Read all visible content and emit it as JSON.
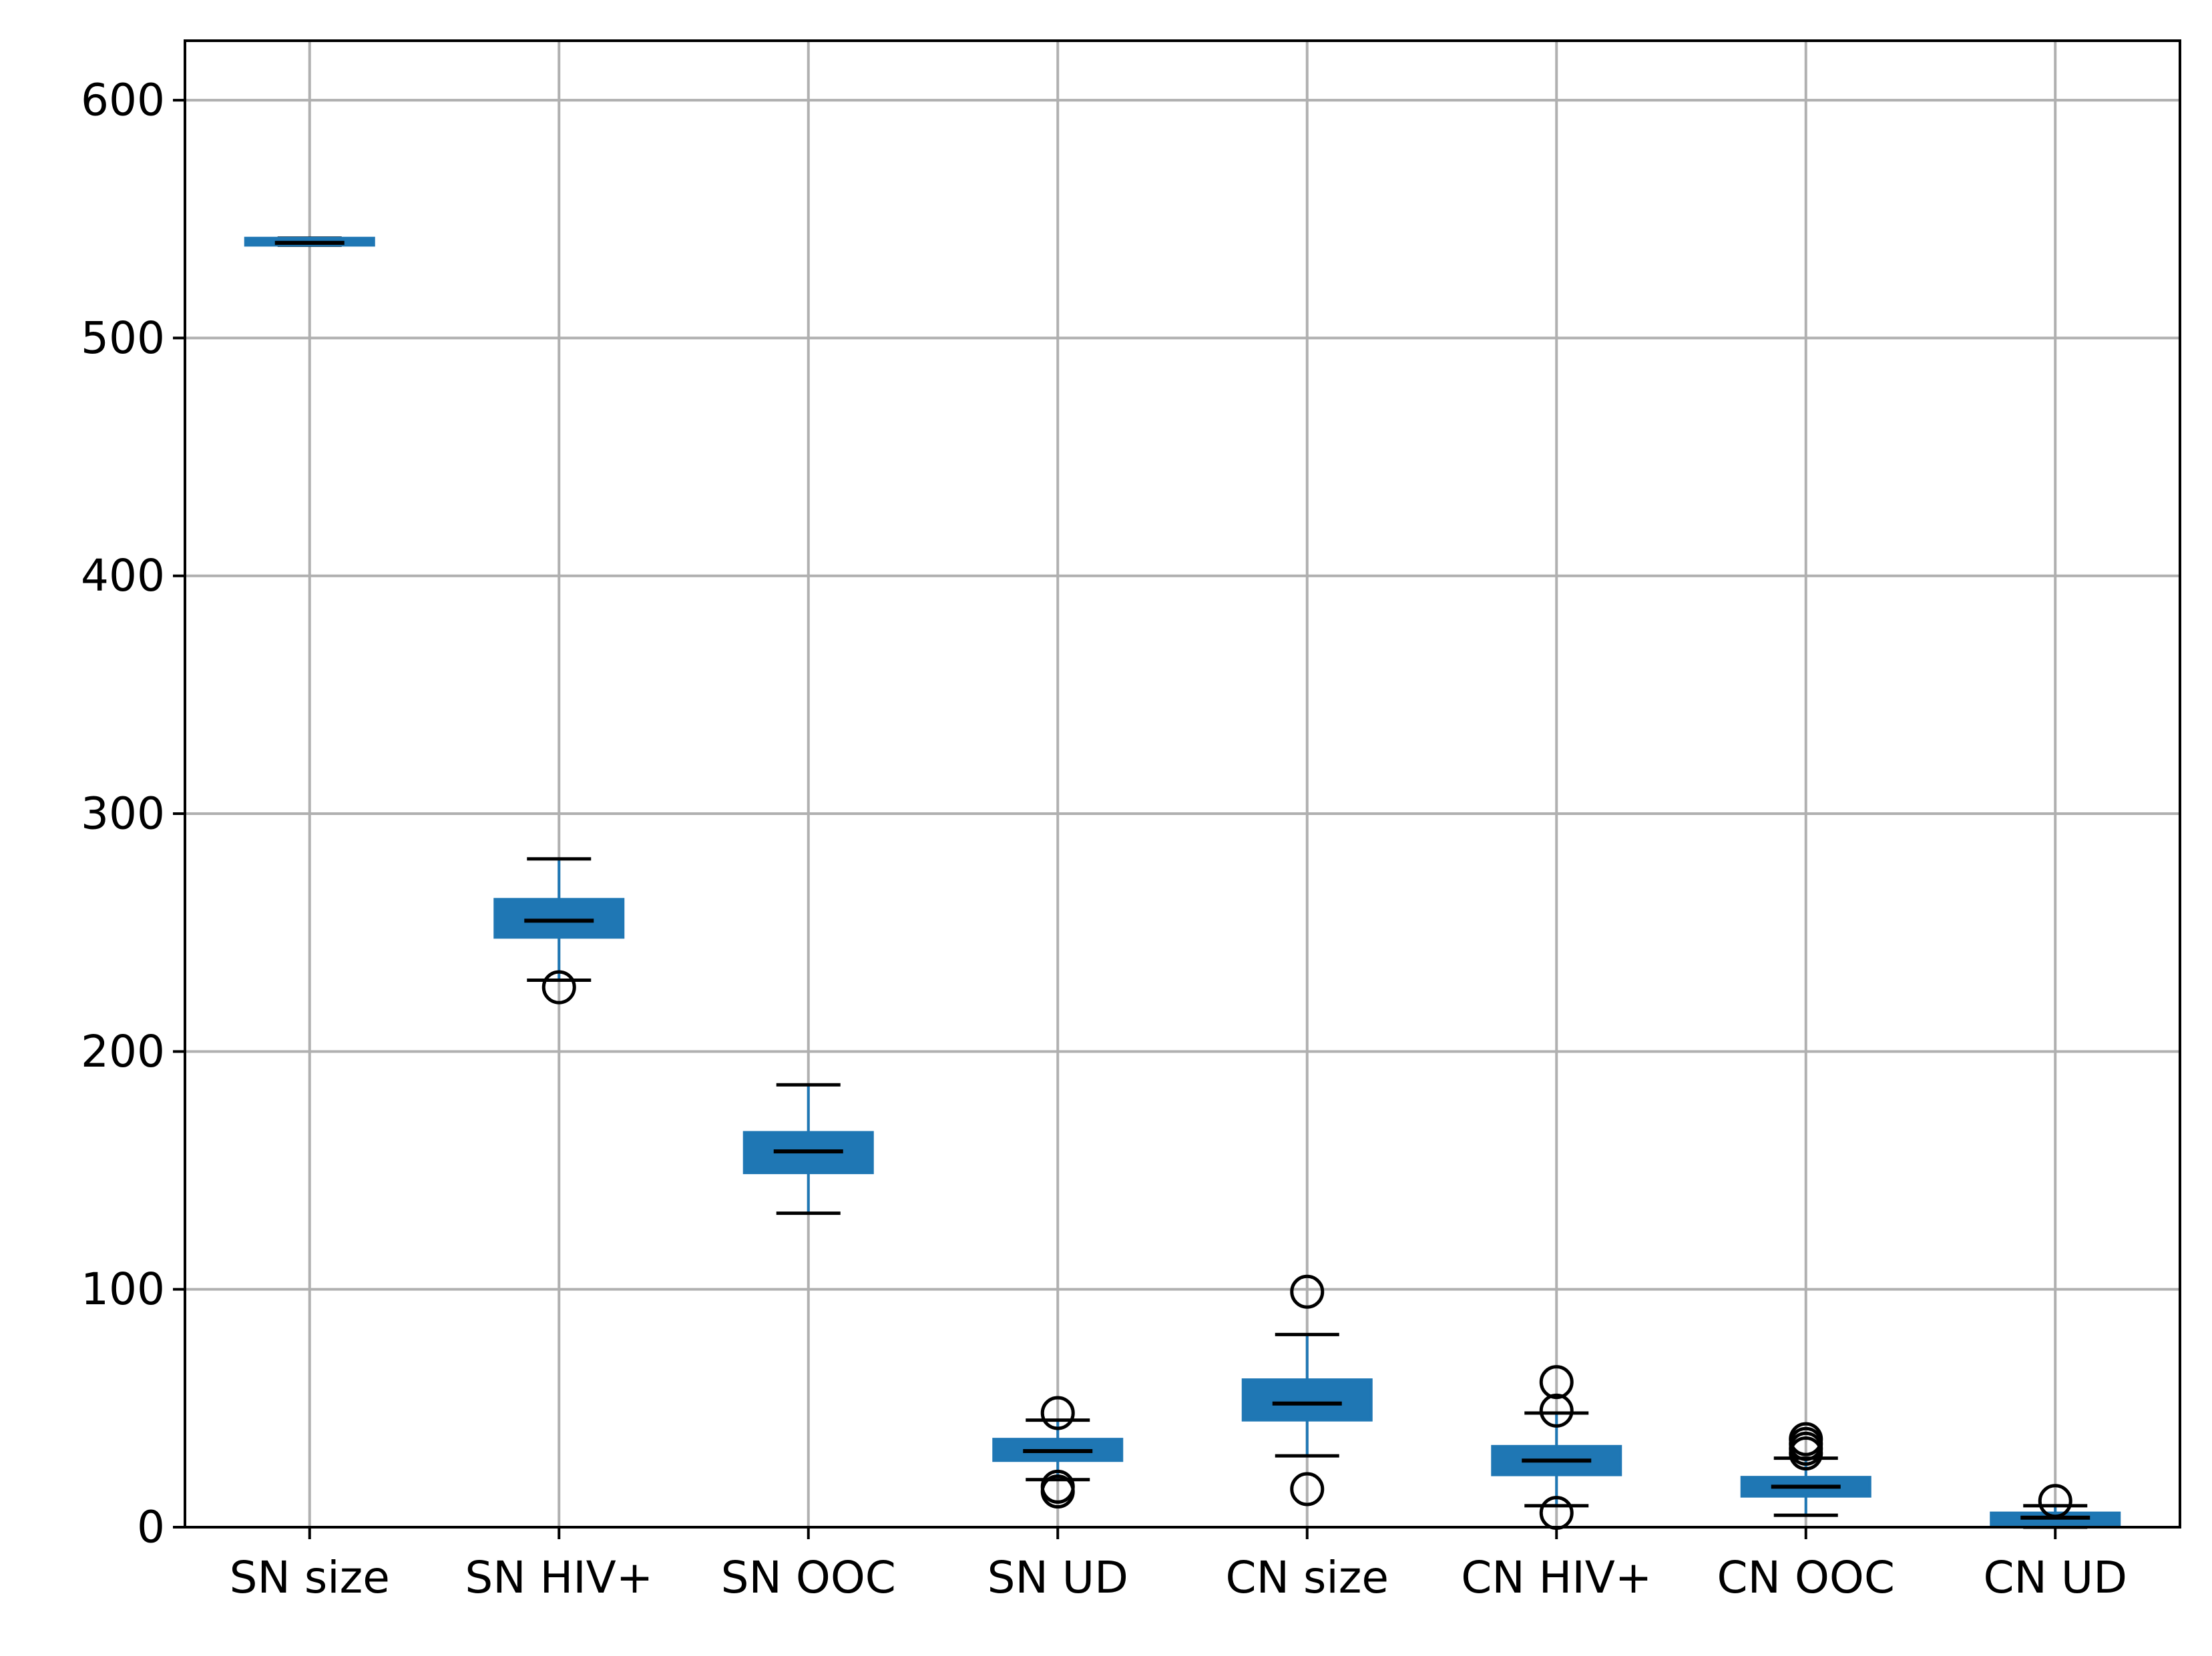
{
  "chart_data": {
    "type": "box",
    "title": "",
    "xlabel": "",
    "ylabel": "",
    "ylim": [
      0,
      625
    ],
    "yticks": [
      0,
      100,
      200,
      300,
      400,
      500,
      600
    ],
    "grid": true,
    "colors": {
      "box": "#1f77b4",
      "median": "#000000",
      "grid": "#b0b0b0",
      "axis": "#000000"
    },
    "categories": [
      "SN size",
      "SN HIV+",
      "SN OOC",
      "SN UD",
      "CN size",
      "CN HIV+",
      "CN OOC",
      "CN UD"
    ],
    "boxes": [
      {
        "label": "SN size",
        "q1": 539,
        "median": 540,
        "q3": 542,
        "whisker_low": 539,
        "whisker_high": 542,
        "outliers": []
      },
      {
        "label": "SN HIV+",
        "q1": 248,
        "median": 255,
        "q3": 264,
        "whisker_low": 230,
        "whisker_high": 281,
        "outliers": [
          227
        ]
      },
      {
        "label": "SN OOC",
        "q1": 149,
        "median": 158,
        "q3": 166,
        "whisker_low": 132,
        "whisker_high": 186,
        "outliers": []
      },
      {
        "label": "SN UD",
        "q1": 28,
        "median": 32,
        "q3": 37,
        "whisker_low": 20,
        "whisker_high": 45,
        "outliers": [
          48,
          17,
          15
        ]
      },
      {
        "label": "CN size",
        "q1": 45,
        "median": 52,
        "q3": 62,
        "whisker_low": 30,
        "whisker_high": 81,
        "outliers": [
          99,
          16
        ]
      },
      {
        "label": "CN HIV+",
        "q1": 22,
        "median": 28,
        "q3": 34,
        "whisker_low": 9,
        "whisker_high": 48,
        "outliers": [
          61,
          49,
          6
        ]
      },
      {
        "label": "CN OOC",
        "q1": 13,
        "median": 17,
        "q3": 21,
        "whisker_low": 5,
        "whisker_high": 29,
        "outliers": [
          37,
          35,
          33,
          31
        ]
      },
      {
        "label": "CN UD",
        "q1": 1,
        "median": 4,
        "q3": 6,
        "whisker_low": 0,
        "whisker_high": 9,
        "outliers": [
          11
        ]
      }
    ]
  }
}
